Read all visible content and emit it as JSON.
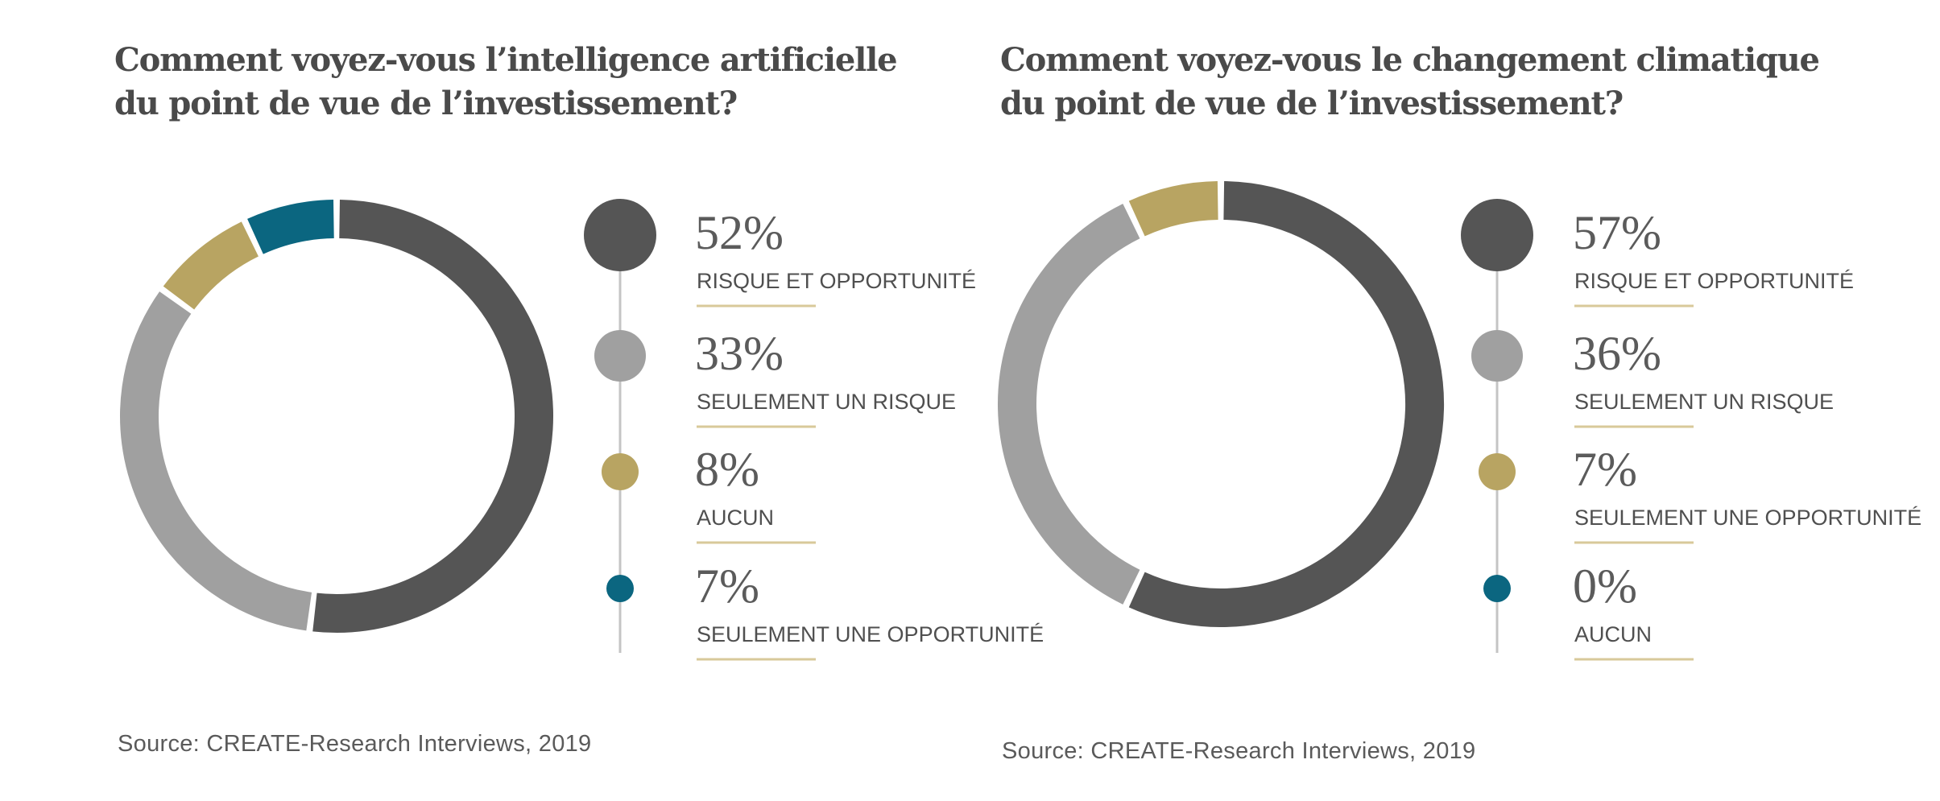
{
  "colors": {
    "risk_and_opportunity": "#555555",
    "only_risk": "#a0a0a0",
    "none_or_only_opportunity_gold": "#b8a462",
    "teal": "#0b6680",
    "underline": "#d8c99a",
    "stem": "#c4c4c4"
  },
  "panels": [
    {
      "title_lines": [
        "Comment voyez-vous l’intelligence artificielle",
        "du point de vue de l’investissement?"
      ],
      "source": "Source: CREATE-Research Interviews, 2019",
      "chart_data": {
        "type": "pie",
        "variant": "donut",
        "start": "top",
        "direction": "clockwise",
        "series": [
          {
            "label": "RISQUE ET OPPORTUNITÉ",
            "value": 52,
            "display": "52%",
            "color": "#555555"
          },
          {
            "label": "SEULEMENT UN RISQUE",
            "value": 33,
            "display": "33%",
            "color": "#a0a0a0"
          },
          {
            "label": "AUCUN",
            "value": 8,
            "display": "8%",
            "color": "#b8a462"
          },
          {
            "label": "SEULEMENT UNE OPPORTUNITÉ",
            "value": 7,
            "display": "7%",
            "color": "#0b6680"
          }
        ]
      }
    },
    {
      "title_lines": [
        "Comment voyez-vous le changement climatique",
        "du point de vue de l’investissement?"
      ],
      "source": "Source: CREATE-Research Interviews, 2019",
      "chart_data": {
        "type": "pie",
        "variant": "donut",
        "start": "top",
        "direction": "clockwise",
        "series": [
          {
            "label": "RISQUE ET OPPORTUNITÉ",
            "value": 57,
            "display": "57%",
            "color": "#555555"
          },
          {
            "label": "SEULEMENT UN RISQUE",
            "value": 36,
            "display": "36%",
            "color": "#a0a0a0"
          },
          {
            "label": "SEULEMENT UNE OPPORTUNITÉ",
            "value": 7,
            "display": "7%",
            "color": "#b8a462"
          },
          {
            "label": "AUCUN",
            "value": 0,
            "display": "0%",
            "color": "#0b6680"
          }
        ]
      }
    }
  ]
}
